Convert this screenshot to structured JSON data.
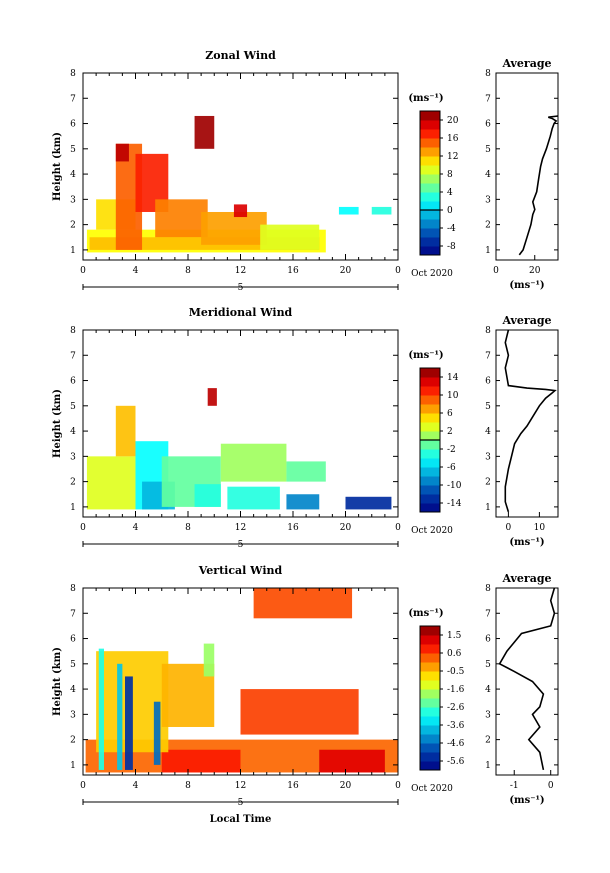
{
  "chart_data": [
    {
      "type": "heatmap",
      "title": "Zonal Wind",
      "ylabel": "Height (km)",
      "xlabel": "",
      "xlim": [
        0,
        24
      ],
      "ylim": [
        0.6,
        8
      ],
      "xticks": [
        "0",
        "4",
        "8",
        "12",
        "16",
        "20",
        "0"
      ],
      "yticks": [
        "1",
        "2",
        "3",
        "4",
        "5",
        "6",
        "7",
        "8"
      ],
      "date_label": "Oct 2020",
      "day_marker": "5",
      "colorbar": {
        "unit": "(ms⁻¹)",
        "ticks": [
          "20",
          "16",
          "12",
          "8",
          "4",
          "0",
          "-4",
          "-8"
        ],
        "range": [
          -10,
          22
        ],
        "contour_level": 0
      },
      "regions": [
        {
          "x": [
            0.3,
            18.5
          ],
          "y": [
            0.9,
            1.8
          ],
          "value": 10
        },
        {
          "x": [
            0.5,
            18.0
          ],
          "y": [
            1.0,
            1.5
          ],
          "value": 12
        },
        {
          "x": [
            1.0,
            4.0
          ],
          "y": [
            1.8,
            3.0
          ],
          "value": 11
        },
        {
          "x": [
            2.5,
            4.5
          ],
          "y": [
            1.0,
            5.2
          ],
          "value": 15
        },
        {
          "x": [
            2.5,
            3.5
          ],
          "y": [
            4.5,
            5.2
          ],
          "value": 20
        },
        {
          "x": [
            4.0,
            6.5
          ],
          "y": [
            2.5,
            4.8
          ],
          "value": 17
        },
        {
          "x": [
            5.5,
            9.5
          ],
          "y": [
            1.5,
            3.0
          ],
          "value": 14
        },
        {
          "x": [
            8.5,
            10.0
          ],
          "y": [
            5.0,
            6.3
          ],
          "value": 21
        },
        {
          "x": [
            9.0,
            14.0
          ],
          "y": [
            1.2,
            2.5
          ],
          "value": 13
        },
        {
          "x": [
            11.5,
            12.5
          ],
          "y": [
            2.3,
            2.8
          ],
          "value": 19
        },
        {
          "x": [
            13.5,
            18.0
          ],
          "y": [
            1.0,
            2.0
          ],
          "value": 9
        },
        {
          "x": [
            19.5,
            21.0
          ],
          "y": [
            2.4,
            2.7
          ],
          "value": 2
        },
        {
          "x": [
            22.0,
            23.5
          ],
          "y": [
            2.4,
            2.7
          ],
          "value": 3
        }
      ],
      "profile": {
        "title": "Average",
        "xlabel": "(ms⁻¹)",
        "xlim": [
          0,
          32
        ],
        "xticks": [
          "0",
          "20"
        ],
        "yticks": [
          "1",
          "2",
          "3",
          "4",
          "5",
          "6",
          "7",
          "8"
        ],
        "x": [
          12,
          14,
          16,
          18,
          19,
          20,
          19,
          21,
          22,
          23,
          24,
          26,
          28,
          29,
          30,
          31,
          29,
          27,
          32
        ],
        "y": [
          0.8,
          1.0,
          1.5,
          2.0,
          2.4,
          2.6,
          2.9,
          3.3,
          3.8,
          4.3,
          4.6,
          5.0,
          5.5,
          5.8,
          6.0,
          6.1,
          6.2,
          6.25,
          6.3
        ]
      }
    },
    {
      "type": "heatmap",
      "title": "Meridional Wind",
      "ylabel": "Height (km)",
      "xlabel": "",
      "xlim": [
        0,
        24
      ],
      "ylim": [
        0.6,
        8
      ],
      "xticks": [
        "0",
        "4",
        "8",
        "12",
        "16",
        "20",
        "0"
      ],
      "yticks": [
        "1",
        "2",
        "3",
        "4",
        "5",
        "6",
        "7",
        "8"
      ],
      "date_label": "Oct 2020",
      "day_marker": "5",
      "colorbar": {
        "unit": "(ms⁻¹)",
        "ticks": [
          "14",
          "10",
          "6",
          "2",
          "-2",
          "-6",
          "-10",
          "-14"
        ],
        "range": [
          -16,
          16
        ],
        "contour_level": 0
      },
      "regions": [
        {
          "x": [
            0.3,
            4.0
          ],
          "y": [
            0.9,
            3.0
          ],
          "value": 3
        },
        {
          "x": [
            2.5,
            4.0
          ],
          "y": [
            3.0,
            5.0
          ],
          "value": 6
        },
        {
          "x": [
            4.0,
            6.5
          ],
          "y": [
            0.9,
            3.6
          ],
          "value": -4
        },
        {
          "x": [
            4.5,
            7.0
          ],
          "y": [
            0.9,
            2.0
          ],
          "value": -7
        },
        {
          "x": [
            6.0,
            10.5
          ],
          "y": [
            1.0,
            3.0
          ],
          "value": -1
        },
        {
          "x": [
            8.5,
            10.5
          ],
          "y": [
            1.0,
            1.9
          ],
          "value": -3
        },
        {
          "x": [
            9.5,
            10.2
          ],
          "y": [
            5.0,
            5.7
          ],
          "value": 14
        },
        {
          "x": [
            10.5,
            15.5
          ],
          "y": [
            2.0,
            3.5
          ],
          "value": 1
        },
        {
          "x": [
            11.0,
            15.0
          ],
          "y": [
            0.9,
            1.8
          ],
          "value": -3
        },
        {
          "x": [
            15.5,
            18.5
          ],
          "y": [
            2.0,
            2.8
          ],
          "value": -1
        },
        {
          "x": [
            15.5,
            18.0
          ],
          "y": [
            0.9,
            1.5
          ],
          "value": -9
        },
        {
          "x": [
            20.0,
            23.5
          ],
          "y": [
            0.9,
            1.4
          ],
          "value": -13
        }
      ],
      "profile": {
        "title": "Average",
        "xlabel": "(ms⁻¹)",
        "xlim": [
          -4,
          16
        ],
        "xticks": [
          "0",
          "10"
        ],
        "yticks": [
          "1",
          "2",
          "3",
          "4",
          "5",
          "6",
          "7",
          "8"
        ],
        "x": [
          0,
          -1,
          -1,
          0,
          1,
          2,
          4,
          6,
          8,
          10,
          12,
          14,
          15,
          12,
          6,
          0,
          -1,
          0,
          -1,
          0
        ],
        "y": [
          0.8,
          1.2,
          1.8,
          2.5,
          3.0,
          3.5,
          3.9,
          4.2,
          4.6,
          5.0,
          5.3,
          5.5,
          5.6,
          5.65,
          5.7,
          5.8,
          6.5,
          7.0,
          7.5,
          8.0
        ]
      }
    },
    {
      "type": "heatmap",
      "title": "Vertical Wind",
      "ylabel": "Height (km)",
      "xlabel": "Local Time",
      "xlim": [
        0,
        24
      ],
      "ylim": [
        0.6,
        8
      ],
      "xticks": [
        "0",
        "4",
        "8",
        "12",
        "16",
        "20",
        "0"
      ],
      "yticks": [
        "1",
        "2",
        "3",
        "4",
        "5",
        "6",
        "7",
        "8"
      ],
      "date_label": "Oct 2020",
      "day_marker": "5",
      "colorbar": {
        "unit": "(ms⁻¹)",
        "ticks": [
          "1.5",
          "0.6",
          "-0.5",
          "-1.6",
          "-2.6",
          "-3.6",
          "-4.6",
          "-5.6"
        ],
        "range": [
          -6.0,
          2.0
        ],
        "contour_level": null
      },
      "regions": [
        {
          "x": [
            0.2,
            24.0
          ],
          "y": [
            0.7,
            2.0
          ],
          "value": 0.2
        },
        {
          "x": [
            6.0,
            12.0
          ],
          "y": [
            0.7,
            1.6
          ],
          "value": 0.8
        },
        {
          "x": [
            1.0,
            6.5
          ],
          "y": [
            1.5,
            5.5
          ],
          "value": -0.6
        },
        {
          "x": [
            6.0,
            10.0
          ],
          "y": [
            2.5,
            5.0
          ],
          "value": -0.4
        },
        {
          "x": [
            1.2,
            1.6
          ],
          "y": [
            0.8,
            5.6
          ],
          "value": -2.8
        },
        {
          "x": [
            2.6,
            3.0
          ],
          "y": [
            0.8,
            5.0
          ],
          "value": -3.6
        },
        {
          "x": [
            3.2,
            3.8
          ],
          "y": [
            0.8,
            4.5
          ],
          "value": -5.2
        },
        {
          "x": [
            5.4,
            5.9
          ],
          "y": [
            1.0,
            3.5
          ],
          "value": -4.5
        },
        {
          "x": [
            9.2,
            10.0
          ],
          "y": [
            4.5,
            5.8
          ],
          "value": -1.8
        },
        {
          "x": [
            12.0,
            21.0
          ],
          "y": [
            2.2,
            4.0
          ],
          "value": 0.5
        },
        {
          "x": [
            13.0,
            20.5
          ],
          "y": [
            6.8,
            8.0
          ],
          "value": 0.4
        },
        {
          "x": [
            18.0,
            23.0
          ],
          "y": [
            0.7,
            1.6
          ],
          "value": 1.2
        }
      ],
      "profile": {
        "title": "Average",
        "xlabel": "(ms⁻¹)",
        "xlim": [
          -1.5,
          0.2
        ],
        "xticks": [
          "-1",
          "0"
        ],
        "yticks": [
          "1",
          "2",
          "3",
          "4",
          "5",
          "6",
          "7",
          "8"
        ],
        "x": [
          -0.2,
          -0.3,
          -0.6,
          -0.3,
          -0.5,
          -0.3,
          -0.2,
          -0.5,
          -1.0,
          -1.4,
          -1.2,
          -0.8,
          0.0,
          0.1,
          0.0,
          0.1
        ],
        "y": [
          0.8,
          1.5,
          2.0,
          2.5,
          3.0,
          3.3,
          3.8,
          4.3,
          4.7,
          5.0,
          5.5,
          6.2,
          6.5,
          7.0,
          7.5,
          8.0
        ]
      }
    }
  ]
}
